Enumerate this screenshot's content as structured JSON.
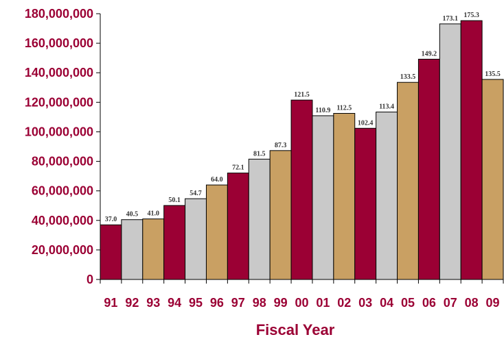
{
  "chart_data": {
    "type": "bar",
    "title": "",
    "xlabel": "Fiscal Year",
    "ylabel": "",
    "ylim": [
      0,
      180000000
    ],
    "yticks": [
      0,
      20000000,
      40000000,
      60000000,
      80000000,
      100000000,
      120000000,
      140000000,
      160000000,
      180000000
    ],
    "ytick_labels": [
      "0",
      "20,000,000",
      "40,000,000",
      "60,000,000",
      "80,000,000",
      "100,000,000",
      "120,000,000",
      "140,000,000",
      "160,000,000",
      "180,000,000"
    ],
    "categories": [
      "91",
      "92",
      "93",
      "94",
      "95",
      "96",
      "97",
      "98",
      "99",
      "00",
      "01",
      "02",
      "03",
      "04",
      "05",
      "06",
      "07",
      "08",
      "09"
    ],
    "values": [
      37000000,
      40500000,
      41000000,
      50100000,
      54700000,
      64000000,
      72100000,
      81500000,
      87300000,
      121500000,
      110900000,
      112500000,
      102400000,
      113400000,
      133500000,
      149200000,
      173100000,
      175300000,
      135500000
    ],
    "data_labels": [
      "37.0",
      "40.5",
      "41.0",
      "50.1",
      "54.7",
      "64.0",
      "72.1",
      "81.5",
      "87.3",
      "121.5",
      "110.9",
      "112.5",
      "102.4",
      "113.4",
      "133.5",
      "149.2",
      "173.1",
      "175.3",
      "135.5"
    ],
    "bar_colors": [
      "#9b0034",
      "#c9c9c9",
      "#c9a063",
      "#9b0034",
      "#c9c9c9",
      "#c9a063",
      "#9b0034",
      "#c9c9c9",
      "#c9a063",
      "#9b0034",
      "#c9c9c9",
      "#c9a063",
      "#9b0034",
      "#c9c9c9",
      "#c9a063",
      "#9b0034",
      "#c9c9c9",
      "#9b0034",
      "#c9a063"
    ],
    "axis_text_color": "#9b0034",
    "grid": false,
    "legend": "none"
  }
}
